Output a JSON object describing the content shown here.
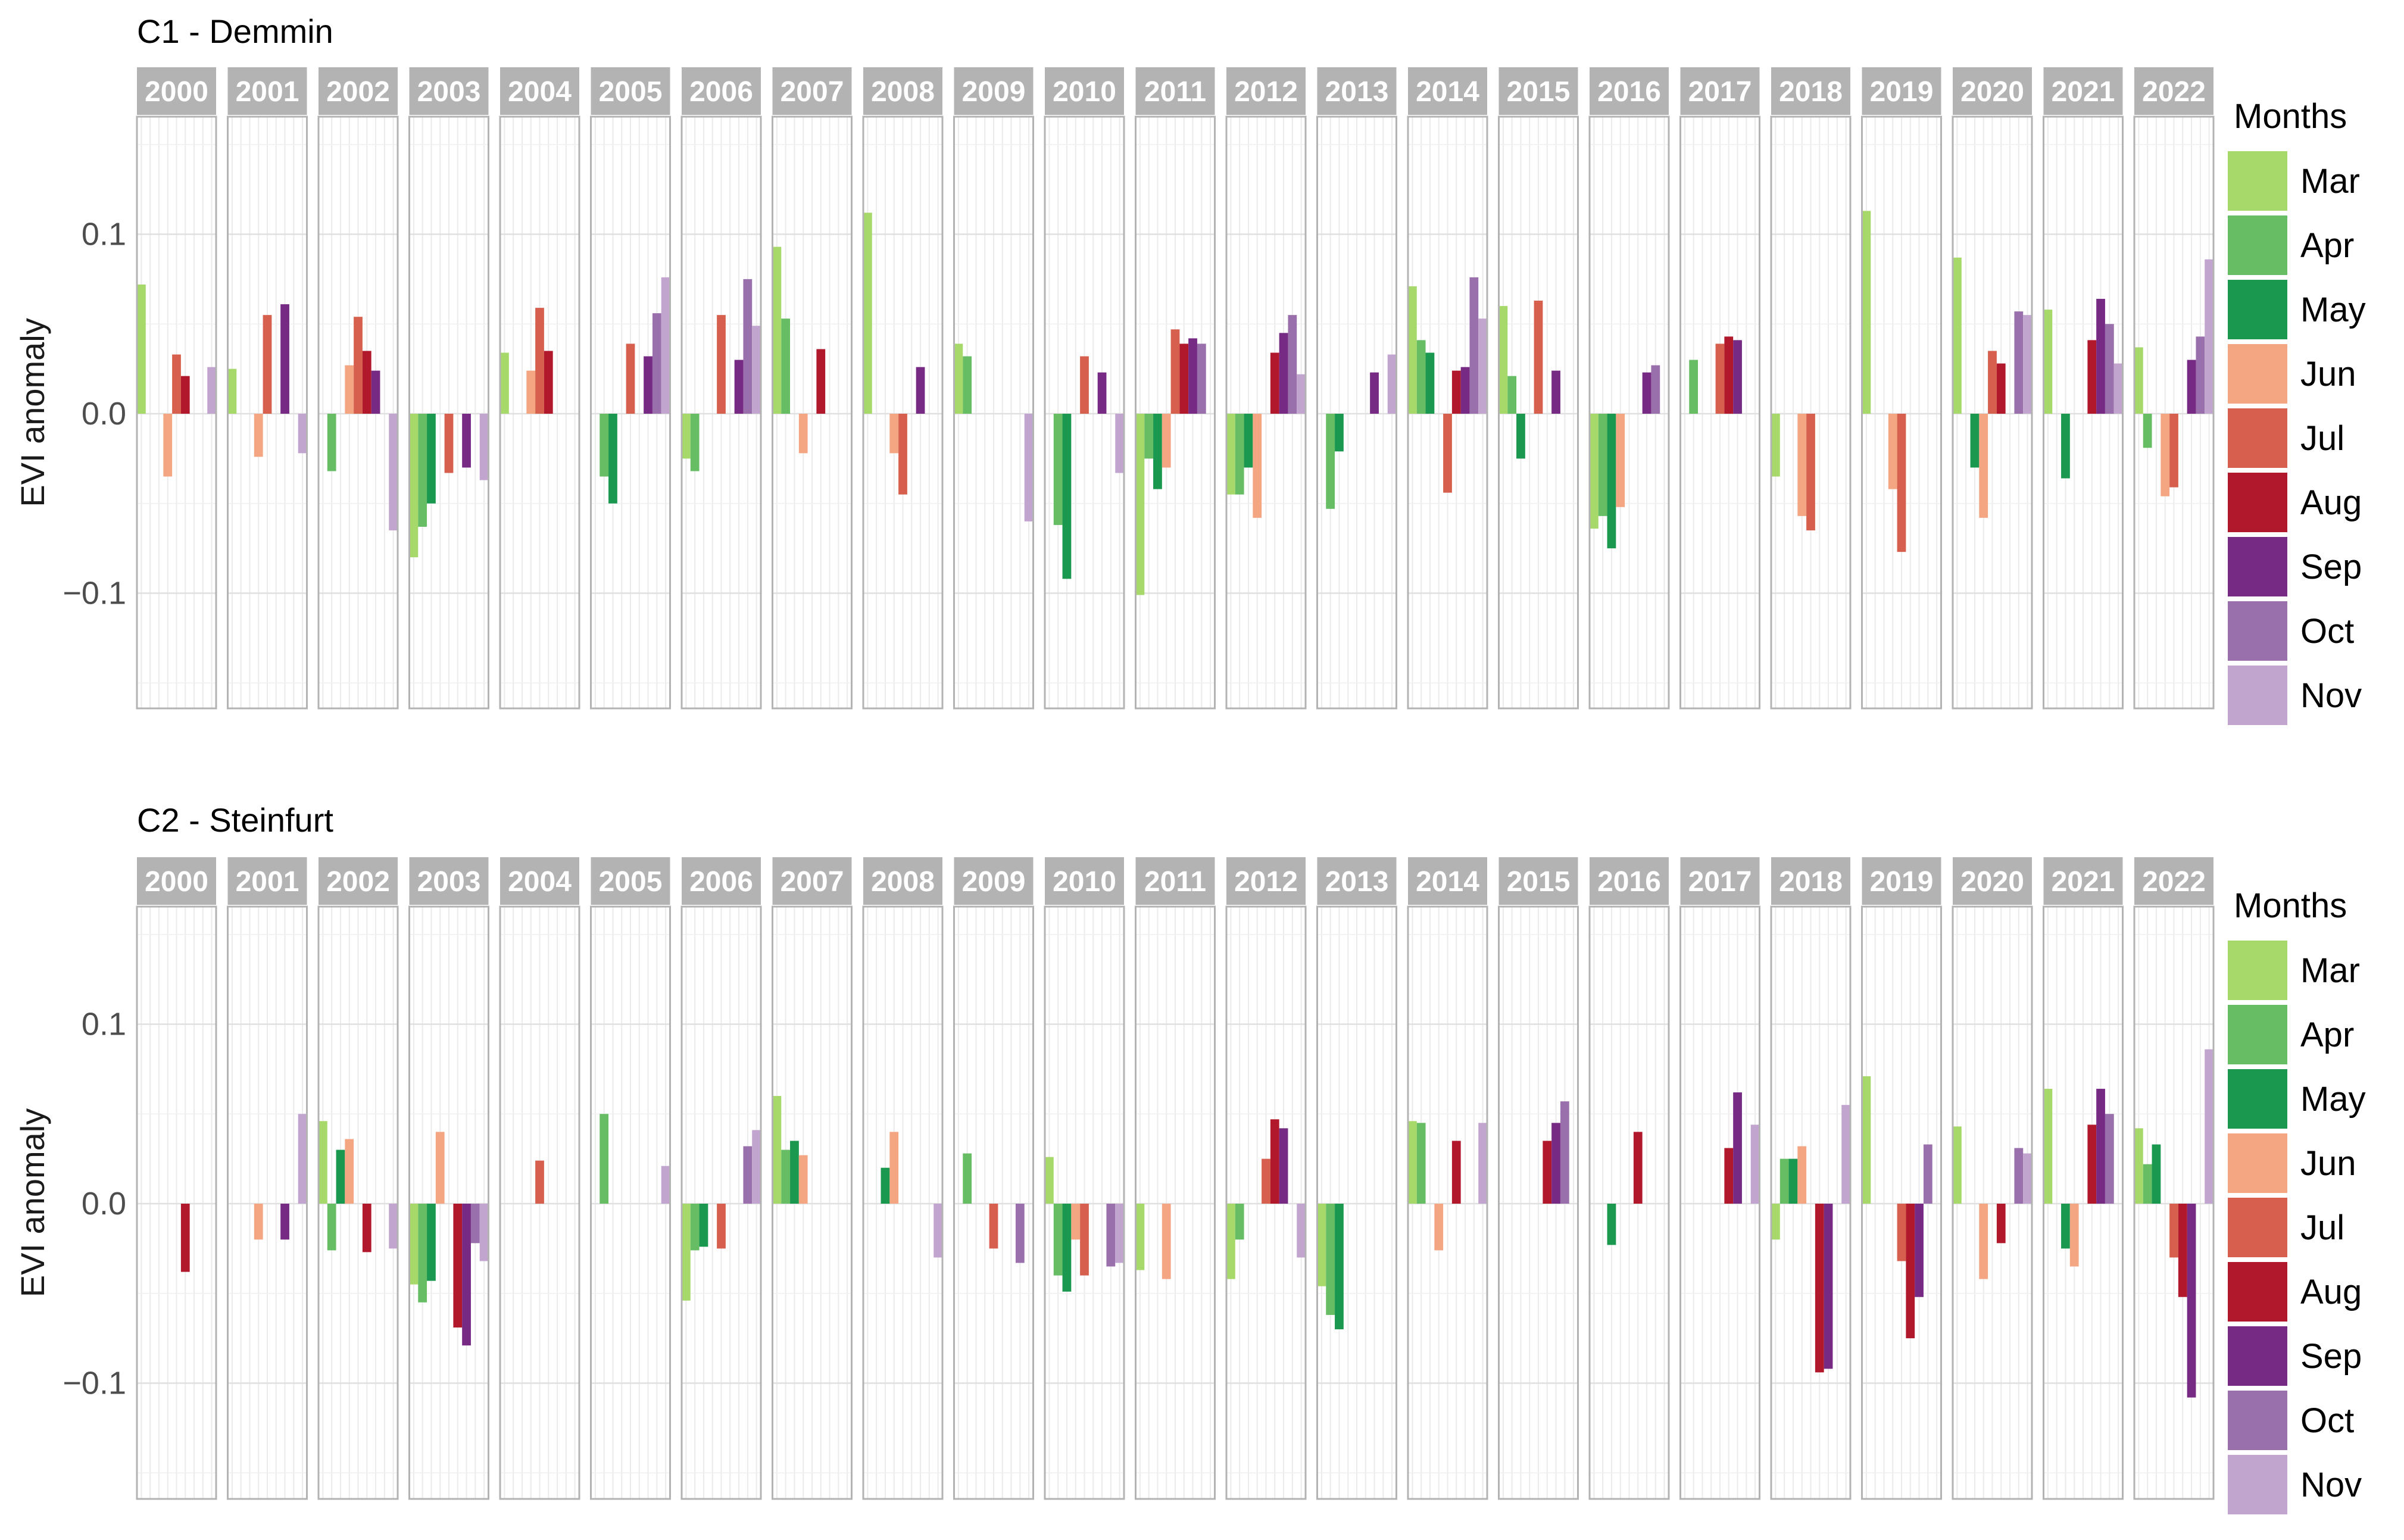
{
  "chart_data": [
    {
      "type": "bar",
      "title": "C1 - Demmin",
      "ylabel": "EVI anomaly",
      "xlabel": "",
      "facet_by": "year",
      "ylim": [
        -0.165,
        0.165
      ],
      "yticks": [
        {
          "value": 0.1,
          "label": "0.1"
        },
        {
          "value": 0.0,
          "label": "0.0"
        },
        {
          "value": -0.1,
          "label": "−0.1"
        }
      ],
      "legend_title": "Months",
      "legend_position": "right",
      "months": [
        {
          "name": "Mar",
          "color": "#a6d96a"
        },
        {
          "name": "Apr",
          "color": "#66bd63"
        },
        {
          "name": "May",
          "color": "#1a9850"
        },
        {
          "name": "Jun",
          "color": "#f4a582"
        },
        {
          "name": "Jul",
          "color": "#d6604d"
        },
        {
          "name": "Aug",
          "color": "#b2182b"
        },
        {
          "name": "Sep",
          "color": "#762a83"
        },
        {
          "name": "Oct",
          "color": "#9970ab"
        },
        {
          "name": "Nov",
          "color": "#c2a5cf"
        }
      ],
      "years": [
        {
          "year": "2000",
          "values": [
            0.072,
            0,
            0,
            -0.035,
            0.033,
            0.021,
            0,
            0,
            0.026
          ]
        },
        {
          "year": "2001",
          "values": [
            0.025,
            0,
            0,
            -0.024,
            0.055,
            0,
            0.061,
            0,
            -0.022
          ]
        },
        {
          "year": "2002",
          "values": [
            0,
            -0.032,
            0,
            0.027,
            0.054,
            0.035,
            0.024,
            0,
            -0.065
          ]
        },
        {
          "year": "2003",
          "values": [
            -0.08,
            -0.063,
            -0.05,
            0,
            -0.033,
            0,
            -0.03,
            0,
            -0.037
          ]
        },
        {
          "year": "2004",
          "values": [
            0.034,
            0,
            0,
            0.024,
            0.059,
            0.035,
            0,
            0,
            0
          ]
        },
        {
          "year": "2005",
          "values": [
            0,
            -0.035,
            -0.05,
            0,
            0.039,
            0,
            0.032,
            0.056,
            0.076
          ]
        },
        {
          "year": "2006",
          "values": [
            -0.025,
            -0.032,
            0,
            0,
            0.055,
            0,
            0.03,
            0.075,
            0.049
          ]
        },
        {
          "year": "2007",
          "values": [
            0.093,
            0.053,
            0,
            -0.022,
            0,
            0.036,
            0,
            0,
            0
          ]
        },
        {
          "year": "2008",
          "values": [
            0.112,
            0,
            0,
            -0.022,
            -0.045,
            0,
            0.026,
            0,
            0
          ]
        },
        {
          "year": "2009",
          "values": [
            0.039,
            0.032,
            0,
            0,
            0,
            0,
            0,
            0,
            -0.06
          ]
        },
        {
          "year": "2010",
          "values": [
            0,
            -0.062,
            -0.092,
            0,
            0.032,
            0,
            0.023,
            0,
            -0.033
          ]
        },
        {
          "year": "2011",
          "values": [
            -0.101,
            -0.025,
            -0.042,
            -0.03,
            0.047,
            0.039,
            0.042,
            0.039,
            0
          ]
        },
        {
          "year": "2012",
          "values": [
            -0.045,
            -0.045,
            -0.03,
            -0.058,
            0,
            0.034,
            0.045,
            0.055,
            0.022
          ]
        },
        {
          "year": "2013",
          "values": [
            0,
            -0.053,
            -0.021,
            0,
            0,
            0,
            0.023,
            0,
            0.033
          ]
        },
        {
          "year": "2014",
          "values": [
            0.071,
            0.041,
            0.034,
            0,
            -0.044,
            0.024,
            0.026,
            0.076,
            0.053
          ]
        },
        {
          "year": "2015",
          "values": [
            0.06,
            0.021,
            -0.025,
            0,
            0.063,
            0,
            0.024,
            0,
            0
          ]
        },
        {
          "year": "2016",
          "values": [
            -0.064,
            -0.057,
            -0.075,
            -0.052,
            0,
            0,
            0.023,
            0.027,
            0
          ]
        },
        {
          "year": "2017",
          "values": [
            0,
            0.03,
            0,
            0,
            0.039,
            0.043,
            0.041,
            0,
            0
          ]
        },
        {
          "year": "2018",
          "values": [
            -0.035,
            0,
            0,
            -0.057,
            -0.065,
            0,
            0,
            0,
            0
          ]
        },
        {
          "year": "2019",
          "values": [
            0.113,
            0,
            0,
            -0.042,
            -0.077,
            0,
            0,
            0,
            0
          ]
        },
        {
          "year": "2020",
          "values": [
            0.087,
            0,
            -0.03,
            -0.058,
            0.035,
            0.028,
            0,
            0.057,
            0.055
          ]
        },
        {
          "year": "2021",
          "values": [
            0.058,
            0,
            -0.036,
            0,
            0,
            0.041,
            0.064,
            0.05,
            0.028
          ]
        },
        {
          "year": "2022",
          "values": [
            0.037,
            -0.019,
            0,
            -0.046,
            -0.041,
            0,
            0.03,
            0.043,
            0.086
          ]
        }
      ]
    },
    {
      "type": "bar",
      "title": "C2 - Steinfurt",
      "ylabel": "EVI anomaly",
      "xlabel": "",
      "facet_by": "year",
      "ylim": [
        -0.165,
        0.165
      ],
      "yticks": [
        {
          "value": 0.1,
          "label": "0.1"
        },
        {
          "value": 0.0,
          "label": "0.0"
        },
        {
          "value": -0.1,
          "label": "−0.1"
        }
      ],
      "legend_title": "Months",
      "legend_position": "right",
      "months": [
        {
          "name": "Mar",
          "color": "#a6d96a"
        },
        {
          "name": "Apr",
          "color": "#66bd63"
        },
        {
          "name": "May",
          "color": "#1a9850"
        },
        {
          "name": "Jun",
          "color": "#f4a582"
        },
        {
          "name": "Jul",
          "color": "#d6604d"
        },
        {
          "name": "Aug",
          "color": "#b2182b"
        },
        {
          "name": "Sep",
          "color": "#762a83"
        },
        {
          "name": "Oct",
          "color": "#9970ab"
        },
        {
          "name": "Nov",
          "color": "#c2a5cf"
        }
      ],
      "years": [
        {
          "year": "2000",
          "values": [
            0,
            0,
            0,
            0,
            0,
            -0.038,
            0,
            0,
            0
          ]
        },
        {
          "year": "2001",
          "values": [
            0,
            0,
            0,
            -0.02,
            0,
            0,
            -0.02,
            0,
            0.05
          ]
        },
        {
          "year": "2002",
          "values": [
            0.046,
            -0.026,
            0.03,
            0.036,
            0,
            -0.027,
            0,
            0,
            -0.025
          ]
        },
        {
          "year": "2003",
          "values": [
            -0.045,
            -0.055,
            -0.043,
            0.04,
            0,
            -0.069,
            -0.079,
            -0.022,
            -0.032
          ]
        },
        {
          "year": "2004",
          "values": [
            0,
            0,
            0,
            0,
            0.024,
            0,
            0,
            0,
            0
          ]
        },
        {
          "year": "2005",
          "values": [
            0,
            0.05,
            0,
            0,
            0,
            0,
            0,
            0,
            0.021
          ]
        },
        {
          "year": "2006",
          "values": [
            -0.054,
            -0.026,
            -0.024,
            0,
            -0.025,
            0,
            0,
            0.032,
            0.041
          ]
        },
        {
          "year": "2007",
          "values": [
            0.06,
            0.03,
            0.035,
            0.027,
            0,
            0,
            0,
            0,
            0
          ]
        },
        {
          "year": "2008",
          "values": [
            0,
            0,
            0.02,
            0.04,
            0,
            0,
            0,
            0,
            -0.03
          ]
        },
        {
          "year": "2009",
          "values": [
            0,
            0.028,
            0,
            0,
            -0.025,
            0,
            0,
            -0.033,
            0
          ]
        },
        {
          "year": "2010",
          "values": [
            0.026,
            -0.04,
            -0.049,
            -0.02,
            -0.04,
            0,
            0,
            -0.035,
            -0.033
          ]
        },
        {
          "year": "2011",
          "values": [
            -0.037,
            0,
            0,
            -0.042,
            0,
            0,
            0,
            0,
            0
          ]
        },
        {
          "year": "2012",
          "values": [
            -0.042,
            -0.02,
            0,
            0,
            0.025,
            0.047,
            0.042,
            0,
            -0.03
          ]
        },
        {
          "year": "2013",
          "values": [
            -0.046,
            -0.062,
            -0.07,
            0,
            0,
            0,
            0,
            0,
            0
          ]
        },
        {
          "year": "2014",
          "values": [
            0.046,
            0.045,
            0,
            -0.026,
            0,
            0.035,
            0,
            0,
            0.045
          ]
        },
        {
          "year": "2015",
          "values": [
            0,
            0,
            0,
            0,
            0,
            0.035,
            0.045,
            0.057,
            0
          ]
        },
        {
          "year": "2016",
          "values": [
            0,
            0,
            -0.023,
            0,
            0,
            0.04,
            0,
            0,
            0
          ]
        },
        {
          "year": "2017",
          "values": [
            0,
            0,
            0,
            0,
            0,
            0.031,
            0.062,
            0,
            0.044
          ]
        },
        {
          "year": "2018",
          "values": [
            -0.02,
            0.025,
            0.025,
            0.032,
            0,
            -0.094,
            -0.092,
            0,
            0.055
          ]
        },
        {
          "year": "2019",
          "values": [
            0.071,
            0,
            0,
            0,
            -0.032,
            -0.075,
            -0.052,
            0.033,
            0
          ]
        },
        {
          "year": "2020",
          "values": [
            0.043,
            0,
            0,
            -0.042,
            0,
            -0.022,
            0,
            0.031,
            0.028
          ]
        },
        {
          "year": "2021",
          "values": [
            0.064,
            0,
            -0.025,
            -0.035,
            0,
            0.044,
            0.064,
            0.05,
            0
          ]
        },
        {
          "year": "2022",
          "values": [
            0.042,
            0.022,
            0.033,
            0,
            -0.03,
            -0.052,
            -0.108,
            0,
            0.086
          ]
        }
      ]
    }
  ]
}
